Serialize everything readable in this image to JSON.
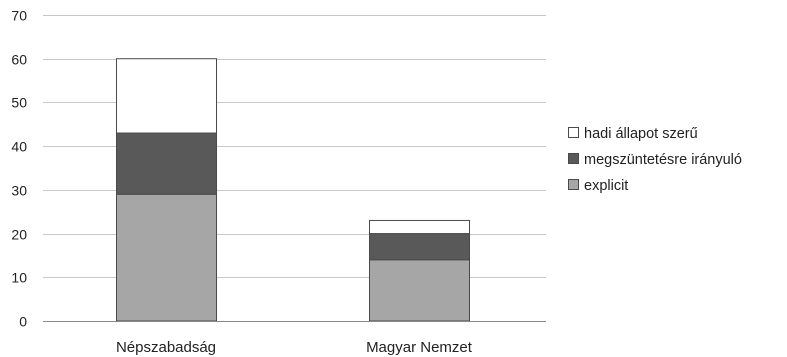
{
  "chart_data": {
    "type": "bar",
    "stacked": true,
    "categories": [
      "Népszabadság",
      "Magyar Nemzet"
    ],
    "series": [
      {
        "name": "explicit",
        "values": [
          29,
          14
        ],
        "color": "#a6a6a6"
      },
      {
        "name": "megszüntetésre irányuló",
        "values": [
          14,
          6
        ],
        "color": "#595959"
      },
      {
        "name": "hadi állapot szerű",
        "values": [
          17,
          3
        ],
        "color": "#ffffff"
      }
    ],
    "legend_order": [
      "hadi állapot szerű",
      "megszüntetésre irányuló",
      "explicit"
    ],
    "ylim": [
      0,
      70
    ],
    "yticks": [
      0,
      10,
      20,
      30,
      40,
      50,
      60,
      70
    ],
    "grid": true,
    "legend_position": "right",
    "title": "",
    "xlabel": "",
    "ylabel": ""
  }
}
